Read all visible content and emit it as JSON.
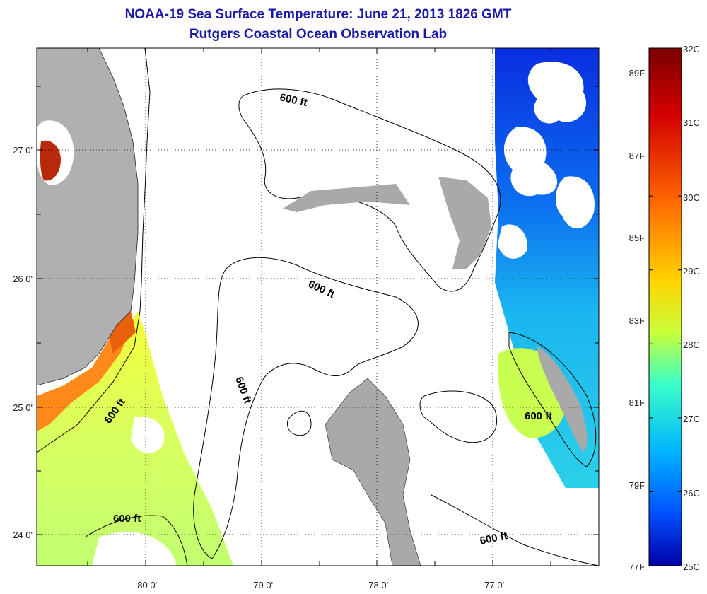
{
  "header": {
    "title": "NOAA-19 Sea Surface Temperature:  June 21, 2013 1826 GMT",
    "subtitle": "Rutgers Coastal Ocean Observation Lab"
  },
  "map": {
    "lon_labels": [
      "-80 0'",
      "-79 0'",
      "-78 0'",
      "-77 0'"
    ],
    "lat_labels": [
      "27 0'",
      "26 0'",
      "25 0'",
      "24 0'"
    ],
    "contour_labels": [
      "600 ft",
      "600 ft",
      "600 ft",
      "600 ft",
      "600 ft",
      "600 ft"
    ]
  },
  "colorbar": {
    "celsius_labels": [
      "32C",
      "31C",
      "30C",
      "29C",
      "28C",
      "27C",
      "26C",
      "25C"
    ],
    "fahrenheit_labels": [
      "89F",
      "87F",
      "85F",
      "83F",
      "81F",
      "79F",
      "77F"
    ],
    "colors": [
      "#7a0000",
      "#d40000",
      "#ff6a00",
      "#ffd400",
      "#c8ff3a",
      "#3affc8",
      "#00b4ff",
      "#0050ff",
      "#0000a8"
    ]
  },
  "palette": {
    "land": "#b0b0b0",
    "cloud": "#ffffff",
    "title_color": "#1a1aa6"
  }
}
